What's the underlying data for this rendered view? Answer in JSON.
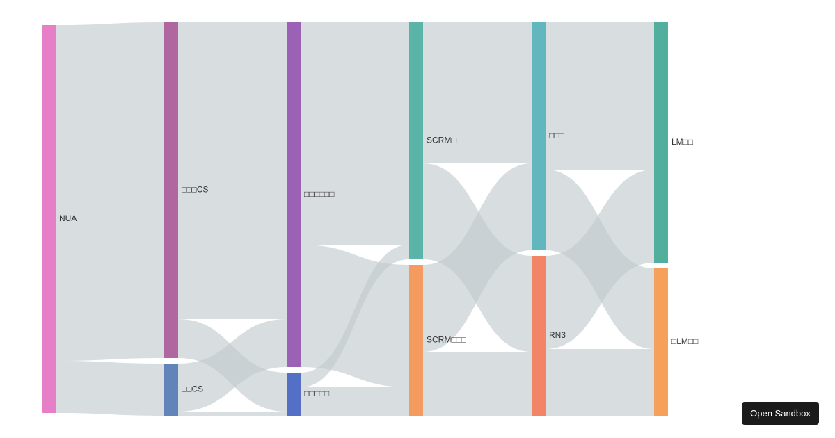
{
  "chart_data": {
    "type": "sankey",
    "nodes": [
      {
        "id": "NUA",
        "label": "NUA",
        "column": 0,
        "color": "#e77fc8"
      },
      {
        "id": "A",
        "label": "□□□CS",
        "column": 1,
        "color": "#b0679f"
      },
      {
        "id": "B",
        "label": "□□CS",
        "column": 1,
        "color": "#6384b8"
      },
      {
        "id": "C",
        "label": "□□□□□□",
        "column": 2,
        "color": "#9a61b4"
      },
      {
        "id": "D",
        "label": "□□□□□",
        "column": 2,
        "color": "#5470c6"
      },
      {
        "id": "E",
        "label": "SCRM□□",
        "column": 3,
        "color": "#5ab5a8"
      },
      {
        "id": "F",
        "label": "SCRM□□□",
        "column": 3,
        "color": "#f49b60"
      },
      {
        "id": "G",
        "label": "□□□",
        "column": 4,
        "color": "#62b6be"
      },
      {
        "id": "H",
        "label": "RN3",
        "column": 4,
        "color": "#f28565"
      },
      {
        "id": "I",
        "label": "LM□□",
        "column": 5,
        "color": "#52ae9d"
      },
      {
        "id": "J",
        "label": "□LM□□",
        "column": 5,
        "color": "#f5a15c"
      }
    ],
    "links": [
      {
        "source": "NUA",
        "target": "A",
        "value": 483
      },
      {
        "source": "NUA",
        "target": "B",
        "value": 75
      },
      {
        "source": "A",
        "target": "C",
        "value": 427
      },
      {
        "source": "A",
        "target": "D",
        "value": 56
      },
      {
        "source": "B",
        "target": "C",
        "value": 69
      },
      {
        "source": "B",
        "target": "D",
        "value": 6
      },
      {
        "source": "C",
        "target": "E",
        "value": 320
      },
      {
        "source": "C",
        "target": "F",
        "value": 176
      },
      {
        "source": "D",
        "target": "E",
        "value": 21
      },
      {
        "source": "D",
        "target": "F",
        "value": 41
      },
      {
        "source": "E",
        "target": "G",
        "value": 203
      },
      {
        "source": "E",
        "target": "H",
        "value": 138
      },
      {
        "source": "F",
        "target": "G",
        "value": 125
      },
      {
        "source": "F",
        "target": "H",
        "value": 92
      },
      {
        "source": "G",
        "target": "I",
        "value": 212
      },
      {
        "source": "G",
        "target": "J",
        "value": 116
      },
      {
        "source": "H",
        "target": "I",
        "value": 134
      },
      {
        "source": "H",
        "target": "J",
        "value": 96
      }
    ],
    "link_color": "#c3cbd0"
  },
  "sandbox_button": {
    "label": "Open Sandbox"
  }
}
